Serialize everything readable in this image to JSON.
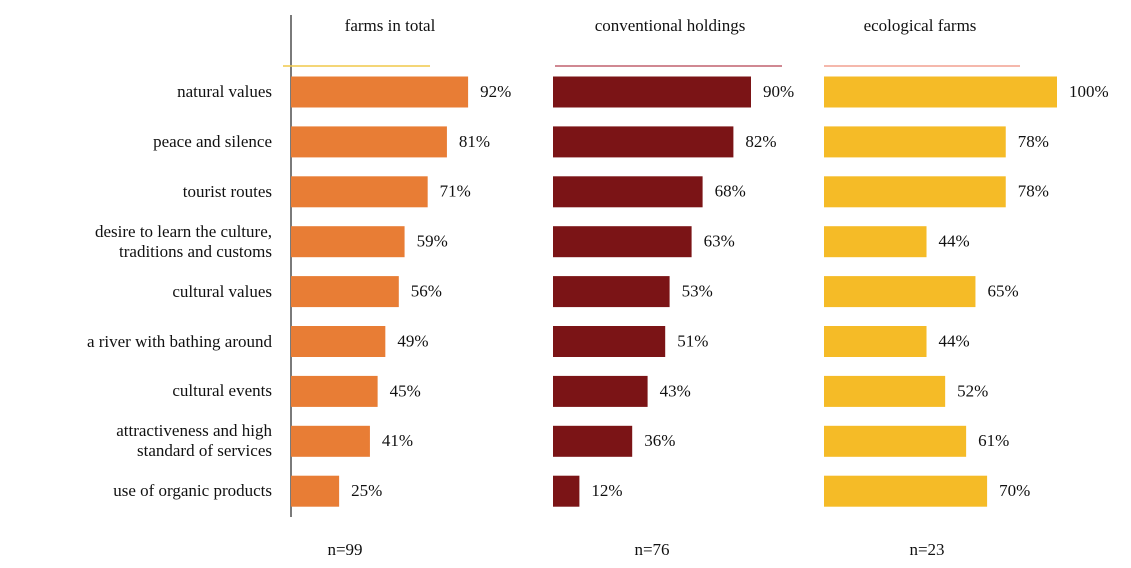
{
  "chart_data": {
    "type": "bar",
    "orientation": "horizontal",
    "categories": [
      "natural values",
      "peace and silence",
      "tourist routes",
      "desire to learn the culture,\ntraditions and customs",
      "cultural values",
      "a river with bathing around",
      "cultural events",
      "attractiveness and high\nstandard of services",
      "use of organic products"
    ],
    "series": [
      {
        "name": "farms in total",
        "color": "#e87d35",
        "rule_color": "#f0c84a",
        "note": "n=99",
        "values": [
          92,
          81,
          71,
          59,
          56,
          49,
          45,
          41,
          25
        ],
        "value_labels": [
          "92%",
          "81%",
          "71%",
          "59%",
          "56%",
          "49%",
          "45%",
          "41%",
          "25%"
        ]
      },
      {
        "name": "conventional holdings",
        "color": "#7b1416",
        "rule_color": "#c0606e",
        "note": "n=76",
        "values": [
          90,
          82,
          68,
          63,
          53,
          51,
          43,
          36,
          12
        ],
        "value_labels": [
          "90%",
          "82%",
          "68%",
          "63%",
          "53%",
          "51%",
          "43%",
          "36%",
          "12%"
        ]
      },
      {
        "name": "ecological farms",
        "color": "#f5bb27",
        "rule_color": "#f2a090",
        "note": "n=23",
        "values": [
          100,
          78,
          78,
          44,
          65,
          44,
          52,
          61,
          70
        ],
        "value_labels": [
          "100%",
          "78%",
          "78%",
          "44%",
          "65%",
          "44%",
          "52%",
          "61%",
          "70%"
        ]
      }
    ]
  }
}
